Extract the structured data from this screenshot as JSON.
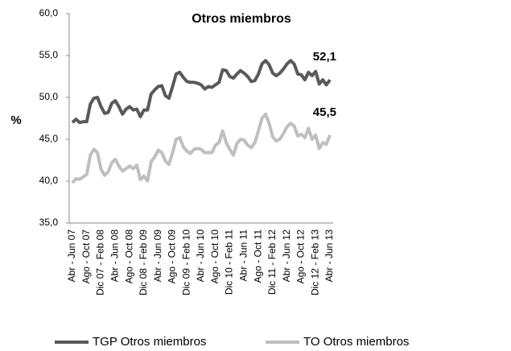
{
  "chart_data": {
    "type": "line",
    "title": "Otros miembros",
    "y_label": "%",
    "categories": [
      "Abr - Jun 07",
      null,
      null,
      null,
      "Ago - Oct 07",
      null,
      null,
      null,
      "Dic 07 - Feb 08",
      null,
      null,
      null,
      "Abr - Jun 08",
      null,
      null,
      null,
      "Ago - Oct 08",
      null,
      null,
      null,
      "Dic 08 - Feb 09",
      null,
      null,
      null,
      "Abr - Jun 09",
      null,
      null,
      null,
      "Ago - Oct 09",
      null,
      null,
      null,
      "Dic 09 - Feb 10",
      null,
      null,
      null,
      "Abr - Jun 10",
      null,
      null,
      null,
      "Ago - Oct 10",
      null,
      null,
      null,
      "Dic 10 - Feb 11",
      null,
      null,
      null,
      "Abr - Jun 11",
      null,
      null,
      null,
      "Ago - Oct 11",
      null,
      null,
      null,
      "Dic 11 - Feb 12",
      null,
      null,
      null,
      "Abr - Jun 12",
      null,
      null,
      null,
      "Ago - Oct 12",
      null,
      null,
      null,
      "Dic 12 - Feb 13",
      null,
      null,
      null,
      "Abr - Jun 13"
    ],
    "series": [
      {
        "name": "TGP Otros miembros",
        "color": "#595959",
        "values": [
          47.0,
          47.4,
          47.0,
          47.1,
          47.1,
          49.2,
          49.9,
          50.0,
          48.9,
          48.1,
          48.2,
          49.3,
          49.6,
          48.9,
          48.0,
          48.6,
          48.9,
          48.5,
          48.6,
          47.7,
          48.5,
          48.5,
          50.4,
          50.9,
          51.3,
          51.4,
          50.2,
          49.9,
          51.3,
          52.8,
          53.0,
          52.4,
          51.9,
          51.8,
          51.8,
          51.7,
          51.5,
          51.0,
          51.3,
          51.2,
          51.5,
          51.8,
          53.3,
          53.2,
          52.5,
          52.3,
          52.8,
          53.2,
          52.9,
          52.5,
          51.9,
          52.0,
          52.8,
          54.0,
          54.4,
          53.9,
          52.9,
          52.6,
          52.9,
          53.4,
          54.0,
          54.4,
          54.0,
          52.8,
          52.7,
          52.1,
          53.0,
          52.6,
          53.1,
          51.6,
          52.1,
          51.5,
          52.1
        ],
        "value_labels": [
          null,
          null,
          null,
          null,
          null,
          null,
          null,
          null,
          null,
          null,
          null,
          null,
          null,
          null,
          null,
          null,
          null,
          null,
          null,
          null,
          null,
          null,
          null,
          null,
          null,
          null,
          null,
          null,
          null,
          null,
          null,
          null,
          null,
          null,
          null,
          null,
          null,
          null,
          null,
          null,
          null,
          null,
          null,
          null,
          null,
          null,
          null,
          null,
          null,
          null,
          null,
          null,
          null,
          null,
          null,
          null,
          null,
          null,
          null,
          null,
          null,
          null,
          null,
          null,
          null,
          null,
          null,
          null,
          null,
          null,
          null,
          null,
          "52,1"
        ]
      },
      {
        "name": "TO Otros miembros",
        "color": "#bfbfbf",
        "values": [
          39.8,
          40.3,
          40.2,
          40.5,
          40.8,
          43.1,
          43.8,
          43.4,
          41.4,
          40.7,
          41.1,
          42.2,
          42.6,
          41.8,
          41.2,
          41.5,
          41.8,
          41.5,
          41.9,
          40.2,
          40.6,
          40.0,
          42.3,
          42.9,
          43.7,
          43.4,
          42.4,
          42.0,
          43.4,
          45.0,
          45.2,
          44.1,
          43.6,
          43.3,
          43.8,
          43.9,
          43.8,
          43.4,
          43.4,
          43.4,
          44.3,
          44.6,
          46.0,
          44.6,
          43.8,
          43.1,
          44.5,
          45.0,
          44.9,
          44.3,
          44.0,
          44.6,
          46.0,
          47.5,
          48.0,
          46.9,
          45.3,
          44.8,
          45.0,
          45.7,
          46.5,
          46.9,
          46.6,
          45.4,
          45.6,
          45.2,
          46.3,
          45.0,
          45.5,
          43.9,
          44.6,
          44.4,
          45.5
        ],
        "value_labels": [
          null,
          null,
          null,
          null,
          null,
          null,
          null,
          null,
          null,
          null,
          null,
          null,
          null,
          null,
          null,
          null,
          null,
          null,
          null,
          null,
          null,
          null,
          null,
          null,
          null,
          null,
          null,
          null,
          null,
          null,
          null,
          null,
          null,
          null,
          null,
          null,
          null,
          null,
          null,
          null,
          null,
          null,
          null,
          null,
          null,
          null,
          null,
          null,
          null,
          null,
          null,
          null,
          null,
          null,
          null,
          null,
          null,
          null,
          null,
          null,
          null,
          null,
          null,
          null,
          null,
          null,
          null,
          null,
          null,
          null,
          null,
          null,
          "45,5"
        ]
      }
    ],
    "ylim": [
      35,
      60
    ],
    "yticks": [
      {
        "value": 35,
        "label": "35,0"
      },
      {
        "value": 40,
        "label": "40,0"
      },
      {
        "value": 45,
        "label": "45,0"
      },
      {
        "value": 50,
        "label": "50,0"
      },
      {
        "value": 55,
        "label": "55,0"
      },
      {
        "value": 60,
        "label": "60,0"
      }
    ],
    "grid": false,
    "legend": "bottom"
  }
}
